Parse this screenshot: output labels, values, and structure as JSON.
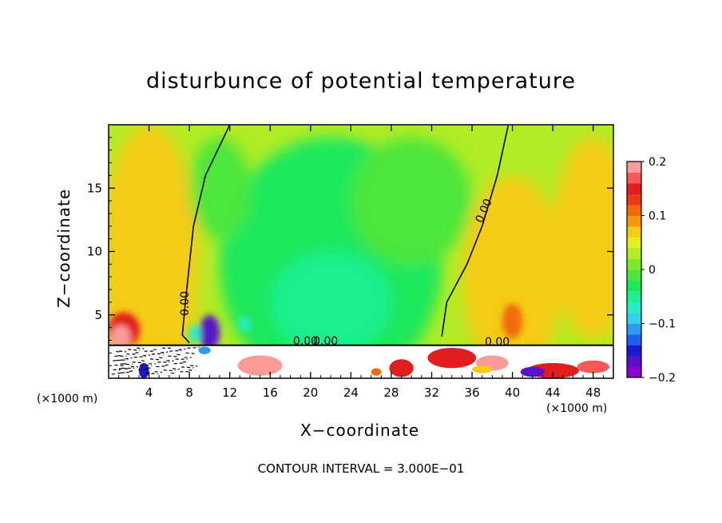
{
  "chart_data": {
    "type": "heatmap",
    "title": "disturbunce of potential temperature",
    "xlabel": "X−coordinate",
    "ylabel": "Z−coordinate",
    "x_unit_left": "(×1000 m)",
    "x_unit_right": "(×1000 m)",
    "footer": "CONTOUR INTERVAL = 3.000E−01",
    "xlim": [
      0,
      50
    ],
    "ylim": [
      0,
      20
    ],
    "x_ticks": [
      4,
      8,
      12,
      16,
      20,
      24,
      28,
      32,
      36,
      40,
      44,
      48
    ],
    "y_ticks": [
      5,
      10,
      15
    ],
    "colorbar": {
      "range": [
        -0.2,
        0.2
      ],
      "tick_labels": [
        "0.2",
        "0.1",
        "0",
        "−0.1",
        "−0.2"
      ],
      "tick_values": [
        0.2,
        0.1,
        0,
        -0.1,
        -0.2
      ],
      "colors": [
        "#8b00d4",
        "#5a12c9",
        "#1a1ad0",
        "#1e5ef0",
        "#2a9af5",
        "#30d2ef",
        "#27eec7",
        "#1fef8f",
        "#1ce85c",
        "#4ee63a",
        "#7de92c",
        "#b1ec25",
        "#e4ee1f",
        "#f4cc13",
        "#f6960a",
        "#f26a08",
        "#ec3a12",
        "#e01e1e",
        "#f75858",
        "#fc9a9a"
      ]
    },
    "contour_labels": [
      "0.00",
      "0.00",
      "0.00",
      "0.00",
      "0.00"
    ],
    "field_description_values": {
      "upper_background": 0.03,
      "central_minimum": -0.05,
      "left_surface_maximum": 0.15,
      "near_surface_minimum_x10": -0.18
    }
  }
}
